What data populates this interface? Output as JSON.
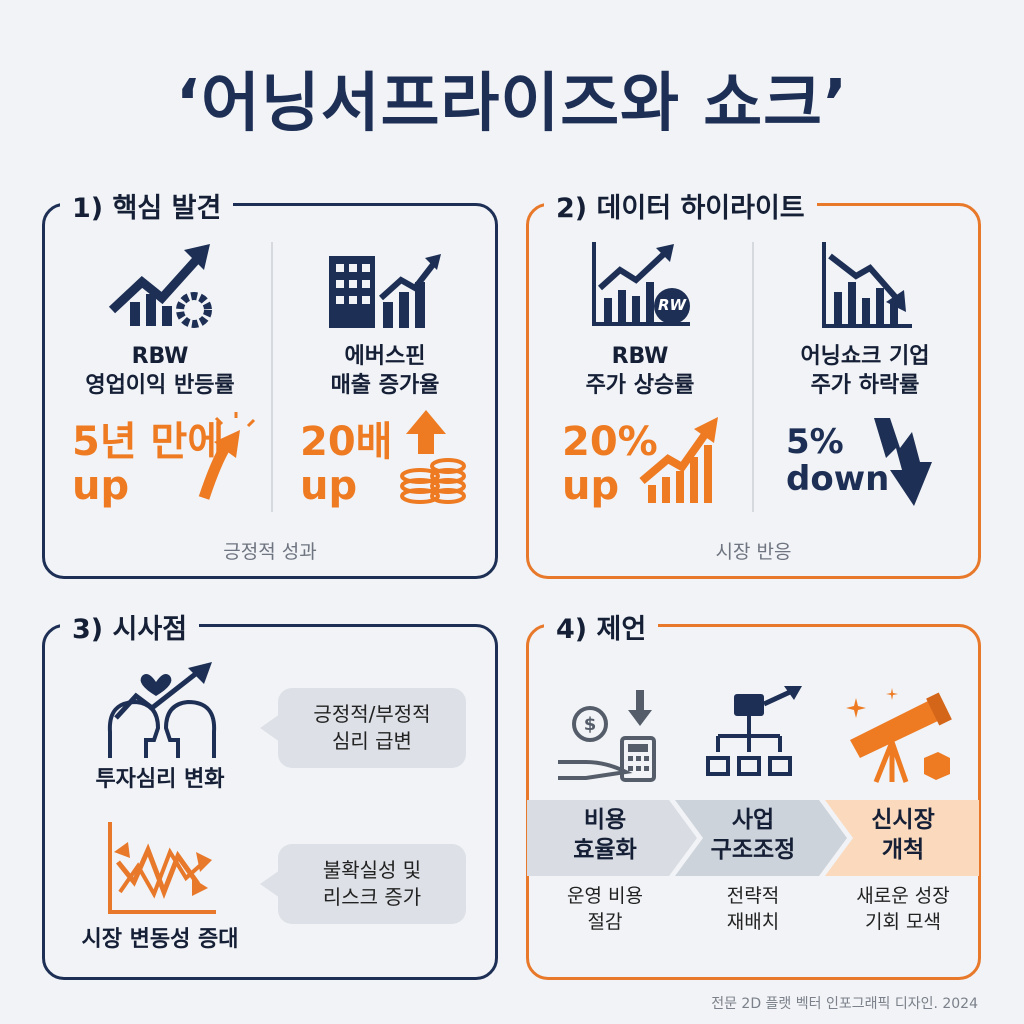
{
  "title": "‘어닝서프라이즈와 쇼크’",
  "panels": [
    {
      "heading": "1) 핵심 발견",
      "items": [
        {
          "label": "RBW\n영업이익 반등률",
          "highlight": "5년 만에\nup"
        },
        {
          "label": "에버스핀\n매출 증가율",
          "highlight": "20배\nup"
        }
      ],
      "footer": "긍정적 성과"
    },
    {
      "heading": "2) 데이터 하이라이트",
      "items": [
        {
          "badge": "RW",
          "label": "RBW\n주가 상승률",
          "highlight": "20%\nup"
        },
        {
          "label": "어닝쇼크 기업\n주가 하락률",
          "highlight": "5%\ndown"
        }
      ],
      "footer": "시장 반응"
    },
    {
      "heading": "3) 시사점",
      "items": [
        {
          "label": "투자심리 변화",
          "note": "긍정적/부정적\n심리 급변"
        },
        {
          "label": "시장 변동성 증대",
          "note": "불확실성 및\n리스크 증가"
        }
      ]
    },
    {
      "heading": "4) 제언",
      "steps": [
        {
          "label": "비용\n효율화",
          "description": "운영 비용\n절감"
        },
        {
          "label": "사업\n구조조정",
          "description": "전략적\n재배치"
        },
        {
          "label": "신시장\n개척",
          "description": "새로운 성장\n기회 모색"
        }
      ]
    }
  ],
  "footer": "전문 2D 플랫 벡터 인포그래픽 디자인. 2024"
}
